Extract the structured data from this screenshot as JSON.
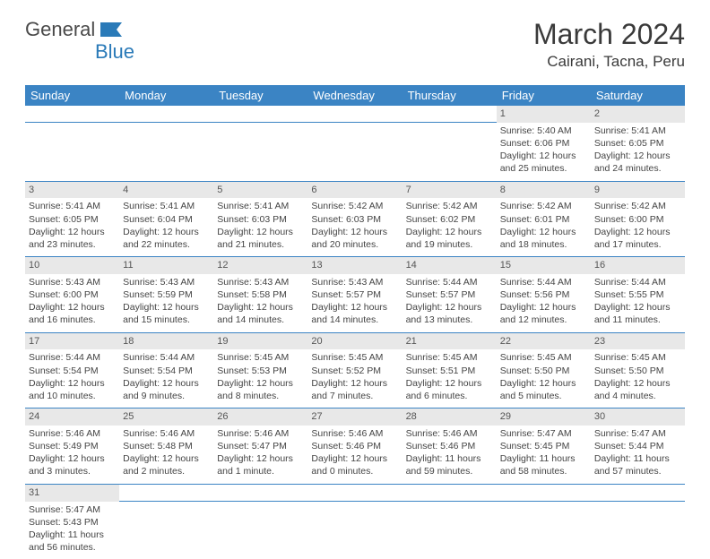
{
  "brand": {
    "part1": "General",
    "part2": "Blue"
  },
  "title": "March 2024",
  "location": "Cairani, Tacna, Peru",
  "colors": {
    "header_bg": "#3b84c4",
    "header_fg": "#ffffff",
    "daynum_bg": "#e8e8e8",
    "border": "#3b84c4",
    "text": "#444444",
    "brand_gray": "#4a4a4a",
    "brand_blue": "#2a7ab8"
  },
  "weekdays": [
    "Sunday",
    "Monday",
    "Tuesday",
    "Wednesday",
    "Thursday",
    "Friday",
    "Saturday"
  ],
  "weeks": [
    {
      "nums": [
        "",
        "",
        "",
        "",
        "",
        "1",
        "2"
      ],
      "cells": [
        null,
        null,
        null,
        null,
        null,
        {
          "sunrise": "Sunrise: 5:40 AM",
          "sunset": "Sunset: 6:06 PM",
          "day1": "Daylight: 12 hours",
          "day2": "and 25 minutes."
        },
        {
          "sunrise": "Sunrise: 5:41 AM",
          "sunset": "Sunset: 6:05 PM",
          "day1": "Daylight: 12 hours",
          "day2": "and 24 minutes."
        }
      ]
    },
    {
      "nums": [
        "3",
        "4",
        "5",
        "6",
        "7",
        "8",
        "9"
      ],
      "cells": [
        {
          "sunrise": "Sunrise: 5:41 AM",
          "sunset": "Sunset: 6:05 PM",
          "day1": "Daylight: 12 hours",
          "day2": "and 23 minutes."
        },
        {
          "sunrise": "Sunrise: 5:41 AM",
          "sunset": "Sunset: 6:04 PM",
          "day1": "Daylight: 12 hours",
          "day2": "and 22 minutes."
        },
        {
          "sunrise": "Sunrise: 5:41 AM",
          "sunset": "Sunset: 6:03 PM",
          "day1": "Daylight: 12 hours",
          "day2": "and 21 minutes."
        },
        {
          "sunrise": "Sunrise: 5:42 AM",
          "sunset": "Sunset: 6:03 PM",
          "day1": "Daylight: 12 hours",
          "day2": "and 20 minutes."
        },
        {
          "sunrise": "Sunrise: 5:42 AM",
          "sunset": "Sunset: 6:02 PM",
          "day1": "Daylight: 12 hours",
          "day2": "and 19 minutes."
        },
        {
          "sunrise": "Sunrise: 5:42 AM",
          "sunset": "Sunset: 6:01 PM",
          "day1": "Daylight: 12 hours",
          "day2": "and 18 minutes."
        },
        {
          "sunrise": "Sunrise: 5:42 AM",
          "sunset": "Sunset: 6:00 PM",
          "day1": "Daylight: 12 hours",
          "day2": "and 17 minutes."
        }
      ]
    },
    {
      "nums": [
        "10",
        "11",
        "12",
        "13",
        "14",
        "15",
        "16"
      ],
      "cells": [
        {
          "sunrise": "Sunrise: 5:43 AM",
          "sunset": "Sunset: 6:00 PM",
          "day1": "Daylight: 12 hours",
          "day2": "and 16 minutes."
        },
        {
          "sunrise": "Sunrise: 5:43 AM",
          "sunset": "Sunset: 5:59 PM",
          "day1": "Daylight: 12 hours",
          "day2": "and 15 minutes."
        },
        {
          "sunrise": "Sunrise: 5:43 AM",
          "sunset": "Sunset: 5:58 PM",
          "day1": "Daylight: 12 hours",
          "day2": "and 14 minutes."
        },
        {
          "sunrise": "Sunrise: 5:43 AM",
          "sunset": "Sunset: 5:57 PM",
          "day1": "Daylight: 12 hours",
          "day2": "and 14 minutes."
        },
        {
          "sunrise": "Sunrise: 5:44 AM",
          "sunset": "Sunset: 5:57 PM",
          "day1": "Daylight: 12 hours",
          "day2": "and 13 minutes."
        },
        {
          "sunrise": "Sunrise: 5:44 AM",
          "sunset": "Sunset: 5:56 PM",
          "day1": "Daylight: 12 hours",
          "day2": "and 12 minutes."
        },
        {
          "sunrise": "Sunrise: 5:44 AM",
          "sunset": "Sunset: 5:55 PM",
          "day1": "Daylight: 12 hours",
          "day2": "and 11 minutes."
        }
      ]
    },
    {
      "nums": [
        "17",
        "18",
        "19",
        "20",
        "21",
        "22",
        "23"
      ],
      "cells": [
        {
          "sunrise": "Sunrise: 5:44 AM",
          "sunset": "Sunset: 5:54 PM",
          "day1": "Daylight: 12 hours",
          "day2": "and 10 minutes."
        },
        {
          "sunrise": "Sunrise: 5:44 AM",
          "sunset": "Sunset: 5:54 PM",
          "day1": "Daylight: 12 hours",
          "day2": "and 9 minutes."
        },
        {
          "sunrise": "Sunrise: 5:45 AM",
          "sunset": "Sunset: 5:53 PM",
          "day1": "Daylight: 12 hours",
          "day2": "and 8 minutes."
        },
        {
          "sunrise": "Sunrise: 5:45 AM",
          "sunset": "Sunset: 5:52 PM",
          "day1": "Daylight: 12 hours",
          "day2": "and 7 minutes."
        },
        {
          "sunrise": "Sunrise: 5:45 AM",
          "sunset": "Sunset: 5:51 PM",
          "day1": "Daylight: 12 hours",
          "day2": "and 6 minutes."
        },
        {
          "sunrise": "Sunrise: 5:45 AM",
          "sunset": "Sunset: 5:50 PM",
          "day1": "Daylight: 12 hours",
          "day2": "and 5 minutes."
        },
        {
          "sunrise": "Sunrise: 5:45 AM",
          "sunset": "Sunset: 5:50 PM",
          "day1": "Daylight: 12 hours",
          "day2": "and 4 minutes."
        }
      ]
    },
    {
      "nums": [
        "24",
        "25",
        "26",
        "27",
        "28",
        "29",
        "30"
      ],
      "cells": [
        {
          "sunrise": "Sunrise: 5:46 AM",
          "sunset": "Sunset: 5:49 PM",
          "day1": "Daylight: 12 hours",
          "day2": "and 3 minutes."
        },
        {
          "sunrise": "Sunrise: 5:46 AM",
          "sunset": "Sunset: 5:48 PM",
          "day1": "Daylight: 12 hours",
          "day2": "and 2 minutes."
        },
        {
          "sunrise": "Sunrise: 5:46 AM",
          "sunset": "Sunset: 5:47 PM",
          "day1": "Daylight: 12 hours",
          "day2": "and 1 minute."
        },
        {
          "sunrise": "Sunrise: 5:46 AM",
          "sunset": "Sunset: 5:46 PM",
          "day1": "Daylight: 12 hours",
          "day2": "and 0 minutes."
        },
        {
          "sunrise": "Sunrise: 5:46 AM",
          "sunset": "Sunset: 5:46 PM",
          "day1": "Daylight: 11 hours",
          "day2": "and 59 minutes."
        },
        {
          "sunrise": "Sunrise: 5:47 AM",
          "sunset": "Sunset: 5:45 PM",
          "day1": "Daylight: 11 hours",
          "day2": "and 58 minutes."
        },
        {
          "sunrise": "Sunrise: 5:47 AM",
          "sunset": "Sunset: 5:44 PM",
          "day1": "Daylight: 11 hours",
          "day2": "and 57 minutes."
        }
      ]
    },
    {
      "nums": [
        "31",
        "",
        "",
        "",
        "",
        "",
        ""
      ],
      "cells": [
        {
          "sunrise": "Sunrise: 5:47 AM",
          "sunset": "Sunset: 5:43 PM",
          "day1": "Daylight: 11 hours",
          "day2": "and 56 minutes."
        },
        null,
        null,
        null,
        null,
        null,
        null
      ]
    }
  ]
}
